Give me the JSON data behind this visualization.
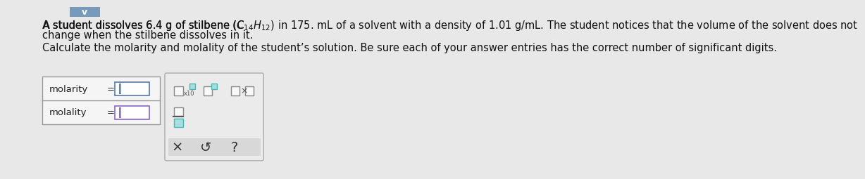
{
  "bg_color": "#e8e8e8",
  "text_line1a": "A student dissolves 6.4 g of stilbene ",
  "text_formula": "(C",
  "sub14": "14",
  "text_formula2": "H",
  "sub12": "12",
  "text_formula3": ") in 175. mL of a solvent with a density of 1.01 g/mL. The student notices that the volume of the solvent does not",
  "text_line2": "change when the stilbene dissolves in it.",
  "text_line3": "Calculate the molarity and molality of the student’s solution. Be sure each of your answer entries has the correct number of significant digits.",
  "label_molarity": "molarity",
  "label_molality": "molality",
  "equals": "=",
  "white": "#ffffff",
  "form_box_bg": "#f5f5f5",
  "form_border": "#999999",
  "input_border": "#5577aa",
  "input_cursor": "#4466bb",
  "panel_bg": "#ebebeb",
  "panel_border": "#aaaaaa",
  "teal_box": "#44bbbb",
  "purple_box": "#8866cc",
  "gray_text": "#444444",
  "chevron_bg": "#7799bb",
  "font_size_main": 10.5,
  "font_size_label": 9.5
}
